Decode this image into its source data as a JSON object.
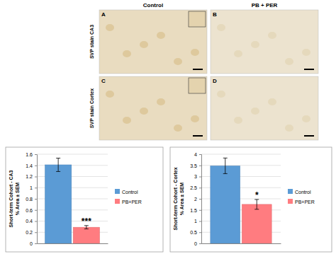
{
  "figure": {
    "column_titles": [
      "Control",
      "PB + PER"
    ],
    "row_labels": [
      "SVP stain CA3",
      "SVP stain Cortex"
    ],
    "panel_letters": [
      "A",
      "B",
      "C",
      "D"
    ]
  },
  "chart_data": [
    {
      "type": "bar",
      "categories": [
        null
      ],
      "y_label": [
        "Short-term Cohort - CA3",
        "% Area ± SEM"
      ],
      "ylim": [
        0,
        1.6
      ],
      "yticks": [
        0,
        0.2,
        0.4,
        0.6,
        0.8,
        1,
        1.2,
        1.4,
        1.6
      ],
      "grid": true,
      "legend": "right",
      "series": [
        {
          "name": "Control",
          "color": "#5b9bd5",
          "values": [
            1.41
          ],
          "errors": [
            0.12
          ]
        },
        {
          "name": "PB+PER",
          "color": "#ff7c80",
          "values": [
            0.29
          ],
          "errors": [
            0.03
          ],
          "annotation": "***"
        }
      ]
    },
    {
      "type": "bar",
      "categories": [
        null
      ],
      "y_label": [
        "Short-term Cohort - Cortex",
        "% Area ± SEM"
      ],
      "ylim": [
        0,
        4
      ],
      "yticks": [
        0,
        0.5,
        1,
        1.5,
        2,
        2.5,
        3,
        3.5,
        4
      ],
      "grid": true,
      "legend": "right",
      "series": [
        {
          "name": "Control",
          "color": "#5b9bd5",
          "values": [
            3.48
          ],
          "errors": [
            0.35
          ]
        },
        {
          "name": "PB+PER",
          "color": "#ff7c80",
          "values": [
            1.75
          ],
          "errors": [
            0.22
          ],
          "annotation": "*"
        }
      ]
    }
  ]
}
